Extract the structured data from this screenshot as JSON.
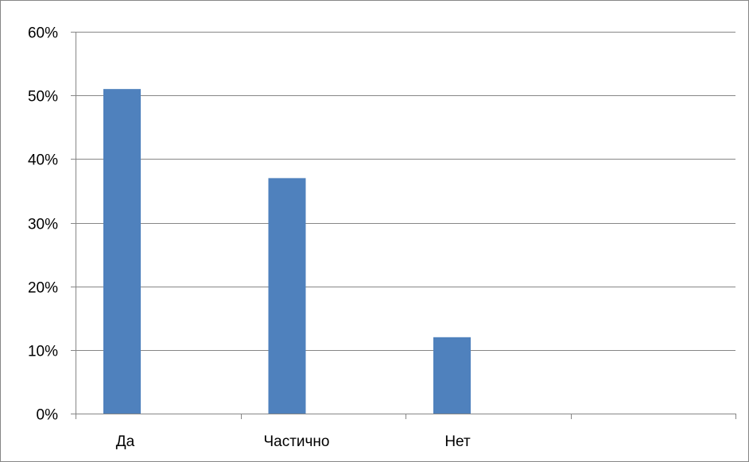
{
  "chart_data": {
    "type": "bar",
    "categories": [
      "Да",
      "Частично",
      "Нет",
      ""
    ],
    "values": [
      0.51,
      0.37,
      0.12,
      null
    ],
    "ylim": [
      0,
      0.6
    ],
    "yticks": [
      0,
      0.1,
      0.2,
      0.3,
      0.4,
      0.5,
      0.6
    ],
    "ytick_labels": [
      "0%",
      "10%",
      "20%",
      "30%",
      "40%",
      "50%",
      "60%"
    ],
    "grid": true,
    "legend": "none",
    "bar_color": "#4F81BD",
    "title": "",
    "xlabel": "",
    "ylabel": ""
  }
}
